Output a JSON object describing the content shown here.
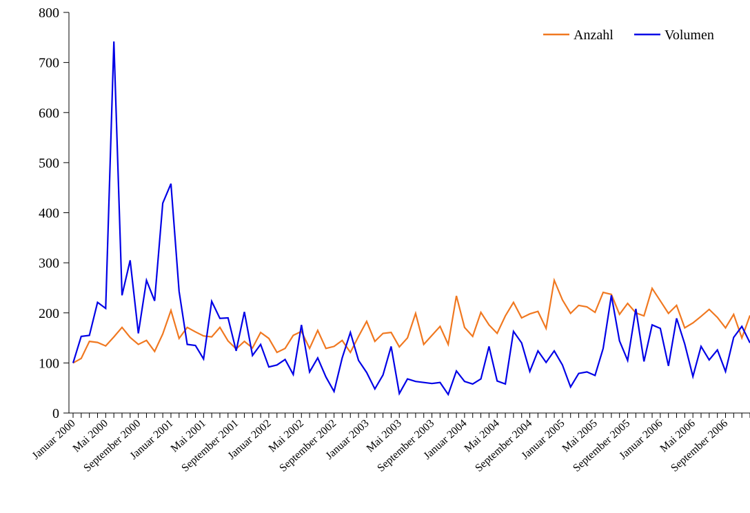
{
  "chart_data": {
    "type": "line",
    "title": "",
    "xlabel": "",
    "ylabel": "",
    "ylim": [
      0,
      800
    ],
    "yticks": [
      0,
      100,
      200,
      300,
      400,
      500,
      600,
      700,
      800
    ],
    "grid": false,
    "legend_position": "top-right",
    "x_tick_labels": [
      {
        "index": 0,
        "label": "Januar 2000"
      },
      {
        "index": 4,
        "label": "Mai 2000"
      },
      {
        "index": 8,
        "label": "September 2000"
      },
      {
        "index": 12,
        "label": "Januar 2001"
      },
      {
        "index": 16,
        "label": "Mai 2001"
      },
      {
        "index": 20,
        "label": "September 2001"
      },
      {
        "index": 24,
        "label": "Januar 2002"
      },
      {
        "index": 28,
        "label": "Mai 2002"
      },
      {
        "index": 32,
        "label": "September 2002"
      },
      {
        "index": 36,
        "label": "Januar 2003"
      },
      {
        "index": 40,
        "label": "Mai 2003"
      },
      {
        "index": 44,
        "label": "September 2003"
      },
      {
        "index": 48,
        "label": "Januar 2004"
      },
      {
        "index": 52,
        "label": "Mai 2004"
      },
      {
        "index": 56,
        "label": "September 2004"
      },
      {
        "index": 60,
        "label": "Januar 2005"
      },
      {
        "index": 64,
        "label": "Mai 2005"
      },
      {
        "index": 68,
        "label": "September 2005"
      },
      {
        "index": 72,
        "label": "Januar 2006"
      },
      {
        "index": 76,
        "label": "Mai 2006"
      },
      {
        "index": 80,
        "label": "September 2006"
      }
    ],
    "n_points": 84,
    "series": [
      {
        "name": "Anzahl",
        "color": "#f07820",
        "values": [
          100,
          109,
          143,
          141,
          134,
          152,
          171,
          151,
          137,
          145,
          123,
          158,
          205,
          149,
          171,
          162,
          154,
          152,
          171,
          144,
          128,
          143,
          130,
          161,
          149,
          121,
          129,
          155,
          163,
          129,
          165,
          129,
          133,
          145,
          121,
          153,
          183,
          143,
          159,
          161,
          132,
          150,
          199,
          137,
          155,
          173,
          137,
          234,
          171,
          153,
          201,
          176,
          159,
          194,
          221,
          190,
          198,
          203,
          169,
          265,
          226,
          199,
          215,
          212,
          201,
          241,
          237,
          197,
          219,
          200,
          194,
          249,
          224,
          199,
          215,
          170,
          180,
          193,
          207,
          191,
          170,
          197,
          150,
          195
        ]
      },
      {
        "name": "Volumen",
        "color": "#0000e6",
        "values": [
          100,
          153,
          155,
          221,
          209,
          742,
          235,
          305,
          159,
          265,
          224,
          419,
          458,
          243,
          137,
          135,
          108,
          223,
          189,
          190,
          124,
          202,
          115,
          137,
          92,
          96,
          107,
          77,
          176,
          82,
          110,
          72,
          43,
          110,
          161,
          105,
          81,
          48,
          76,
          133,
          39,
          68,
          63,
          61,
          59,
          61,
          37,
          84,
          63,
          58,
          68,
          133,
          64,
          58,
          163,
          140,
          83,
          124,
          101,
          124,
          96,
          52,
          79,
          82,
          75,
          129,
          235,
          144,
          105,
          208,
          103,
          176,
          169,
          94,
          189,
          138,
          73,
          133,
          106,
          126,
          83,
          151,
          173,
          140
        ]
      }
    ]
  }
}
